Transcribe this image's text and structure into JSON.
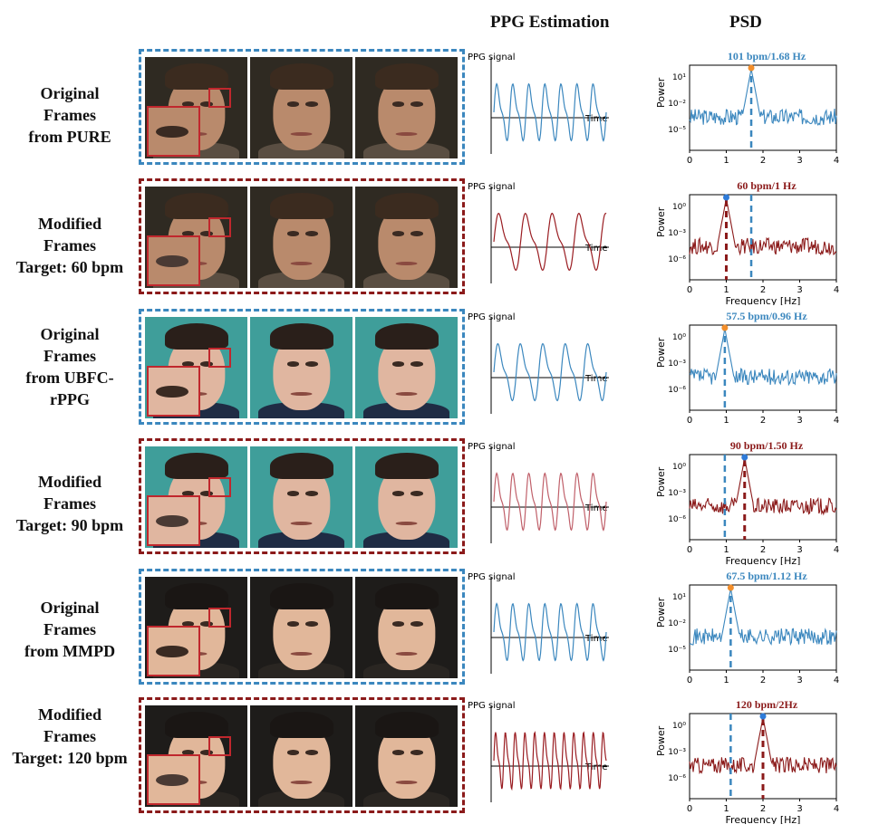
{
  "headers": {
    "ppg": "PPG Estimation",
    "psd": "PSD"
  },
  "rows": [
    {
      "label": [
        "Original",
        "Frames",
        "from PURE"
      ],
      "kind": "original",
      "subject": "pure",
      "ppg_ylabel": "PPG signal",
      "ppg_xlabel": "Time",
      "psd_title": "101 bpm/1.68 Hz",
      "psd_ylabel": "Power",
      "psd_xlabel": "",
      "yticks": [
        "10¹",
        "10⁻²",
        "10⁻⁵"
      ],
      "xticks": [
        "0",
        "1",
        "2",
        "3",
        "4"
      ]
    },
    {
      "label": [
        "Modified",
        "Frames",
        "Target: 60 bpm"
      ],
      "kind": "modified",
      "subject": "pure",
      "ppg_ylabel": "PPG signal",
      "ppg_xlabel": "Time",
      "psd_title": "60 bpm/1 Hz",
      "psd_ylabel": "Power",
      "psd_xlabel": "Frequency [Hz]",
      "yticks": [
        "10⁰",
        "10⁻³",
        "10⁻⁶"
      ],
      "xticks": [
        "0",
        "1",
        "2",
        "3",
        "4"
      ]
    },
    {
      "label": [
        "Original",
        "Frames",
        "from UBFC-",
        "rPPG"
      ],
      "kind": "original",
      "subject": "ubfc",
      "ppg_ylabel": "PPG signal",
      "ppg_xlabel": "Time",
      "psd_title": "57.5 bpm/0.96 Hz",
      "psd_ylabel": "Power",
      "psd_xlabel": "",
      "yticks": [
        "10⁰",
        "10⁻³",
        "10⁻⁶"
      ],
      "xticks": [
        "0",
        "1",
        "2",
        "3",
        "4"
      ]
    },
    {
      "label": [
        "Modified",
        "Frames",
        "Target: 90 bpm"
      ],
      "kind": "modified",
      "subject": "ubfc",
      "ppg_ylabel": "PPG signal",
      "ppg_xlabel": "Time",
      "psd_title": "90 bpm/1.50 Hz",
      "psd_ylabel": "Power",
      "psd_xlabel": "Frequency [Hz]",
      "yticks": [
        "10⁰",
        "10⁻³",
        "10⁻⁶"
      ],
      "xticks": [
        "0",
        "1",
        "2",
        "3",
        "4"
      ]
    },
    {
      "label": [
        "Original",
        "Frames",
        "from MMPD"
      ],
      "kind": "original",
      "subject": "mmpd",
      "ppg_ylabel": "PPG signal",
      "ppg_xlabel": "Time",
      "psd_title": "67.5 bpm/1.12 Hz",
      "psd_ylabel": "Power",
      "psd_xlabel": "",
      "yticks": [
        "10¹",
        "10⁻²",
        "10⁻⁵"
      ],
      "xticks": [
        "0",
        "1",
        "2",
        "3",
        "4"
      ]
    },
    {
      "label": [
        "Modified",
        "Frames",
        "Target: 120 bpm"
      ],
      "kind": "modified",
      "subject": "mmpd",
      "ppg_ylabel": "PPG signal",
      "ppg_xlabel": "Time",
      "psd_title": "120 bpm/2Hz",
      "psd_ylabel": "Power",
      "psd_xlabel": "Frequency [Hz]",
      "yticks": [
        "10⁰",
        "10⁻³",
        "10⁻⁶"
      ],
      "xticks": [
        "0",
        "1",
        "2",
        "3",
        "4"
      ]
    }
  ],
  "chart_data": [
    {
      "type": "line",
      "chart": "psd",
      "series_color": "#3b87be",
      "peak_hz": 1.68,
      "target_hz": 1.68,
      "xlim": [
        0,
        4
      ],
      "log_y": true,
      "xlabel": "",
      "ylabel": "Power"
    },
    {
      "type": "line",
      "chart": "psd",
      "series_color": "#8b1a1a",
      "peak_hz": 1.0,
      "target_hz": 1.68,
      "xlim": [
        0,
        4
      ],
      "log_y": true,
      "xlabel": "Frequency [Hz]",
      "ylabel": "Power"
    },
    {
      "type": "line",
      "chart": "psd",
      "series_color": "#3b87be",
      "peak_hz": 0.96,
      "target_hz": 0.96,
      "xlim": [
        0,
        4
      ],
      "log_y": true,
      "xlabel": "",
      "ylabel": "Power"
    },
    {
      "type": "line",
      "chart": "psd",
      "series_color": "#8b1a1a",
      "peak_hz": 1.5,
      "target_hz": 0.96,
      "xlim": [
        0,
        4
      ],
      "log_y": true,
      "xlabel": "Frequency [Hz]",
      "ylabel": "Power"
    },
    {
      "type": "line",
      "chart": "psd",
      "series_color": "#3b87be",
      "peak_hz": 1.12,
      "target_hz": 1.12,
      "xlim": [
        0,
        4
      ],
      "log_y": true,
      "xlabel": "",
      "ylabel": "Power"
    },
    {
      "type": "line",
      "chart": "psd",
      "series_color": "#8b1a1a",
      "peak_hz": 2.0,
      "target_hz": 1.12,
      "xlim": [
        0,
        4
      ],
      "log_y": true,
      "xlabel": "Frequency [Hz]",
      "ylabel": "Power"
    }
  ],
  "colors": {
    "original": "#3b87be",
    "modified": "#8b1a1a",
    "zoom_box": "#c0272d",
    "peak_original": "#f28e2b",
    "peak_modified": "#2f7bd8"
  }
}
